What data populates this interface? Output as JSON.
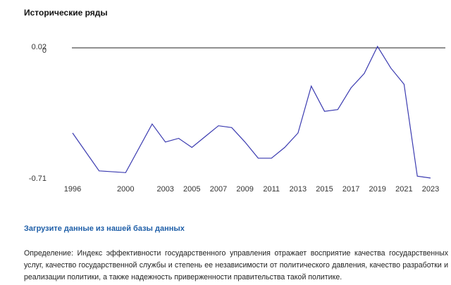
{
  "title": "Исторические ряды",
  "download_link": "Загрузите данные из нашей базы данных",
  "definition": "Определение: Индекс эффективности государственного управления отражает восприятие качества государственных услуг, качество государственной службы и степень ее независимости от политического давления, качество разработки и реализации политики, а также надежность приверженности правительства такой политике.",
  "chart_data": {
    "type": "line",
    "xlabel": "",
    "ylabel": "",
    "ylim": [
      -0.71,
      0.02
    ],
    "y_tick_labels": [
      "0.02",
      "0",
      "-0.71"
    ],
    "reference_line": 0,
    "x_tick_labels": [
      "1996",
      "2000",
      "2003",
      "2005",
      "2007",
      "2009",
      "2011",
      "2013",
      "2015",
      "2017",
      "2019",
      "2021",
      "2023"
    ],
    "line_color": "#3a3ab0",
    "series": [
      {
        "x": [
          1996,
          1998,
          2000,
          2002,
          2003,
          2004,
          2005,
          2006,
          2007,
          2008,
          2009,
          2010,
          2011,
          2012,
          2013,
          2014,
          2015,
          2016,
          2017,
          2018,
          2019,
          2020,
          2021,
          2022,
          2023
        ],
        "values": [
          -0.46,
          -0.67,
          -0.68,
          -0.41,
          -0.51,
          -0.49,
          -0.54,
          -0.48,
          -0.42,
          -0.43,
          -0.51,
          -0.6,
          -0.6,
          -0.54,
          -0.46,
          -0.2,
          -0.34,
          -0.33,
          -0.21,
          -0.13,
          0.02,
          -0.1,
          -0.19,
          -0.7,
          -0.71
        ]
      }
    ]
  }
}
